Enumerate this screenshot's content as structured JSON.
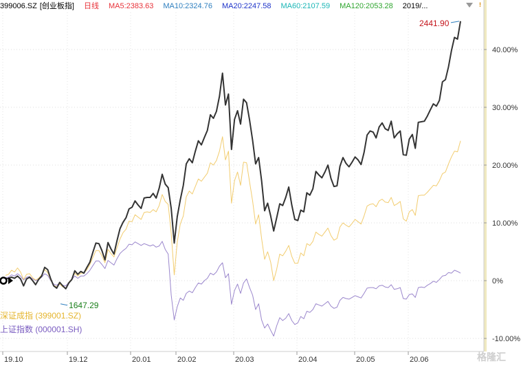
{
  "header": {
    "symbol": "399006.SZ",
    "name": "[创业板指]",
    "period": "日线",
    "ma": [
      {
        "label": "MA5:2383.63",
        "color": "#e8333a"
      },
      {
        "label": "MA10:2324.76",
        "color": "#2e7fbf"
      },
      {
        "label": "MA20:2247.58",
        "color": "#1d33c9"
      },
      {
        "label": "MA60:2107.59",
        "color": "#1ab6b6"
      },
      {
        "label": "MA120:2053.28",
        "color": "#2ea52e"
      }
    ],
    "date_range": "2019/..."
  },
  "legend": [
    {
      "label": "深证成指 (399001.SZ)",
      "color": "#e5b52e"
    },
    {
      "label": "上证指数 (000001.SH)",
      "color": "#7a5cc0"
    }
  ],
  "watermark": "格隆汇",
  "chart_data": {
    "type": "line",
    "x_ticks": [
      "19.10",
      "19.12",
      "20.01",
      "20.02",
      "20.03",
      "20.04",
      "20.05",
      "20.06"
    ],
    "y_ticks": [
      "40.00%",
      "30.00%",
      "20.00%",
      "10.00%",
      "0%",
      "-10.00%"
    ],
    "ylim": [
      -10.5,
      47
    ],
    "annotations": {
      "max_label": "2441.90",
      "min_label": "1647.29"
    },
    "series": [
      {
        "name": "创业板指",
        "color": "#333333",
        "values": [
          0.3,
          0.4,
          0.6,
          0.4,
          0.8,
          0.3,
          -0.9,
          0.3,
          0.6,
          0,
          -0.7,
          0.2,
          0.8,
          2.3,
          1.9,
          0.3,
          -0.9,
          -1.3,
          -0.3,
          -0.9,
          -1.4,
          -0.4,
          0.2,
          1.7,
          1.1,
          1.6,
          1.3,
          2.3,
          3.2,
          4.9,
          6.5,
          6.4,
          5.2,
          3.6,
          6.6,
          5.5,
          4.6,
          6.9,
          9,
          10.1,
          10.9,
          12.4,
          12.7,
          13.8,
          13.1,
          12.5,
          14.3,
          14.4,
          14.4,
          15.1,
          14.3,
          16,
          18.4,
          16.7,
          16.1,
          12.5,
          6.5,
          11.1,
          14,
          16.5,
          20.2,
          21.1,
          20.4,
          22.4,
          24.2,
          23.5,
          24.8,
          26,
          28.7,
          28.1,
          29.3,
          31.9,
          35.9,
          30.4,
          32.3,
          22.7,
          27.9,
          29.4,
          27.1,
          31.4,
          30.8,
          27.8,
          24.3,
          20.2,
          21.3,
          17.3,
          12.1,
          13.4,
          11.2,
          8.6,
          10.9,
          13.3,
          13,
          14.4,
          16.2,
          13.1,
          10.6,
          10.4,
          12.2,
          11.9,
          15.2,
          14.8,
          15.9,
          18.9,
          18.3,
          17.8,
          18.8,
          20,
          17.7,
          16.3,
          16.4,
          19.8,
          21.3,
          20.3,
          19.7,
          20.5,
          21.4,
          20.9,
          20.1,
          22.2,
          25.2,
          25.9,
          25.7,
          24.7,
          26.6,
          27.3,
          26.3,
          26,
          27.6,
          24.7,
          25.4,
          25.9,
          21.8,
          21.7,
          24.5,
          25.3,
          22.9,
          27.4,
          27.5,
          27.6,
          28.5,
          29.6,
          30.6,
          30.2,
          31.2,
          34.4,
          34.8,
          37,
          39.8,
          42.1,
          41.8,
          44.9
        ]
      },
      {
        "name": "深证成指 (399001.SZ)",
        "color": "#f2cc6e",
        "values": [
          0.9,
          1.1,
          1.8,
          1.5,
          2.2,
          1.5,
          0.2,
          1.1,
          1.2,
          0.5,
          0.1,
          0.4,
          1,
          1.9,
          1.4,
          0.1,
          -0.8,
          -1.1,
          -0.6,
          -1.1,
          -1.3,
          -0.3,
          0.3,
          1.3,
          0.8,
          1.3,
          1.3,
          1.9,
          2.8,
          4,
          5.2,
          5.2,
          4.3,
          3.1,
          5.4,
          4.7,
          4.1,
          5.7,
          7.2,
          8.3,
          8.9,
          10.3,
          10.2,
          11.4,
          11,
          10.6,
          11.8,
          11.9,
          11.8,
          12.3,
          11.9,
          13,
          14.9,
          13.7,
          13.2,
          8.2,
          1,
          6.7,
          9.8,
          11.2,
          14.5,
          15.5,
          15,
          16.3,
          17.6,
          17.2,
          17.9,
          18.6,
          20.4,
          20,
          20.8,
          22.4,
          24.9,
          20.9,
          22.4,
          13.4,
          17.3,
          18.8,
          16.5,
          20.5,
          20.4,
          17.1,
          13.8,
          9.8,
          11.4,
          7.3,
          3.7,
          5,
          3.2,
          0,
          2,
          4.6,
          4.3,
          5.1,
          6.1,
          4.2,
          3,
          3,
          4.8,
          4.3,
          6.4,
          6.1,
          6.8,
          8.4,
          8,
          7.7,
          8.4,
          9.1,
          7.8,
          7,
          7.3,
          9.3,
          10,
          9.6,
          9.3,
          9.9,
          10.6,
          10.2,
          9.8,
          11.2,
          12.9,
          13.2,
          13.3,
          12.8,
          13.8,
          14.1,
          13.6,
          13.5,
          14.4,
          13,
          13.3,
          13.7,
          10.7,
          10.3,
          11.9,
          12.3,
          11.3,
          14.7,
          14.8,
          14.8,
          15.3,
          15.9,
          16.5,
          16.4,
          17.3,
          18.5,
          18.8,
          20.2,
          21.4,
          22.4,
          22.3,
          24.2
        ]
      },
      {
        "name": "上证指数 (000001.SH)",
        "color": "#9a86cc",
        "values": [
          0.5,
          0.6,
          1,
          0.8,
          1.2,
          0.8,
          0.1,
          0.6,
          0.7,
          0.3,
          0,
          0.2,
          0.6,
          1.2,
          0.9,
          0,
          -0.6,
          -0.8,
          -0.4,
          -0.8,
          -0.9,
          -0.3,
          0.2,
          0.8,
          0.4,
          0.8,
          0.8,
          1.2,
          1.8,
          2.6,
          3.4,
          3.4,
          2.8,
          2.1,
          3.5,
          3.1,
          2.7,
          3.8,
          4.7,
          5.2,
          5.6,
          6.3,
          6.2,
          6.7,
          6.4,
          6.1,
          6.4,
          6.2,
          6,
          6.2,
          5.8,
          6,
          6.8,
          5.4,
          4.6,
          -2.5,
          -6.8,
          -4.5,
          -3,
          -3.4,
          -2.2,
          -1.8,
          -2.1,
          -1.2,
          -0.4,
          -0.6,
          0,
          0.4,
          1.3,
          1,
          1.5,
          2.5,
          3.1,
          0.5,
          1.2,
          -4.1,
          -1.7,
          -0.6,
          -2.2,
          -0.4,
          0.3,
          -1.2,
          -2.5,
          -5,
          -4,
          -6.8,
          -8.2,
          -7.5,
          -8.6,
          -9.6,
          -7.8,
          -6.4,
          -6.9,
          -6.5,
          -5.7,
          -6.9,
          -7.6,
          -7.3,
          -6.2,
          -6.6,
          -5.3,
          -5.5,
          -5,
          -4,
          -4.2,
          -4.4,
          -4,
          -3.6,
          -4.4,
          -4.8,
          -4.6,
          -3.4,
          -2.9,
          -3.1,
          -3.2,
          -2.9,
          -2.6,
          -2.8,
          -3,
          -2.2,
          -1.3,
          -1.2,
          -1.2,
          -1.4,
          -0.9,
          -0.8,
          -1.1,
          -1.2,
          -0.7,
          -1.5,
          -1.4,
          -1.2,
          -3.1,
          -3.2,
          -2.4,
          -2.3,
          -2.9,
          -1.2,
          -1.1,
          -1.2,
          -0.8,
          -0.5,
          -0.1,
          -0.3,
          0.2,
          0.8,
          0.9,
          1.4,
          1.3,
          1.8,
          1.6,
          1.3
        ]
      }
    ]
  }
}
